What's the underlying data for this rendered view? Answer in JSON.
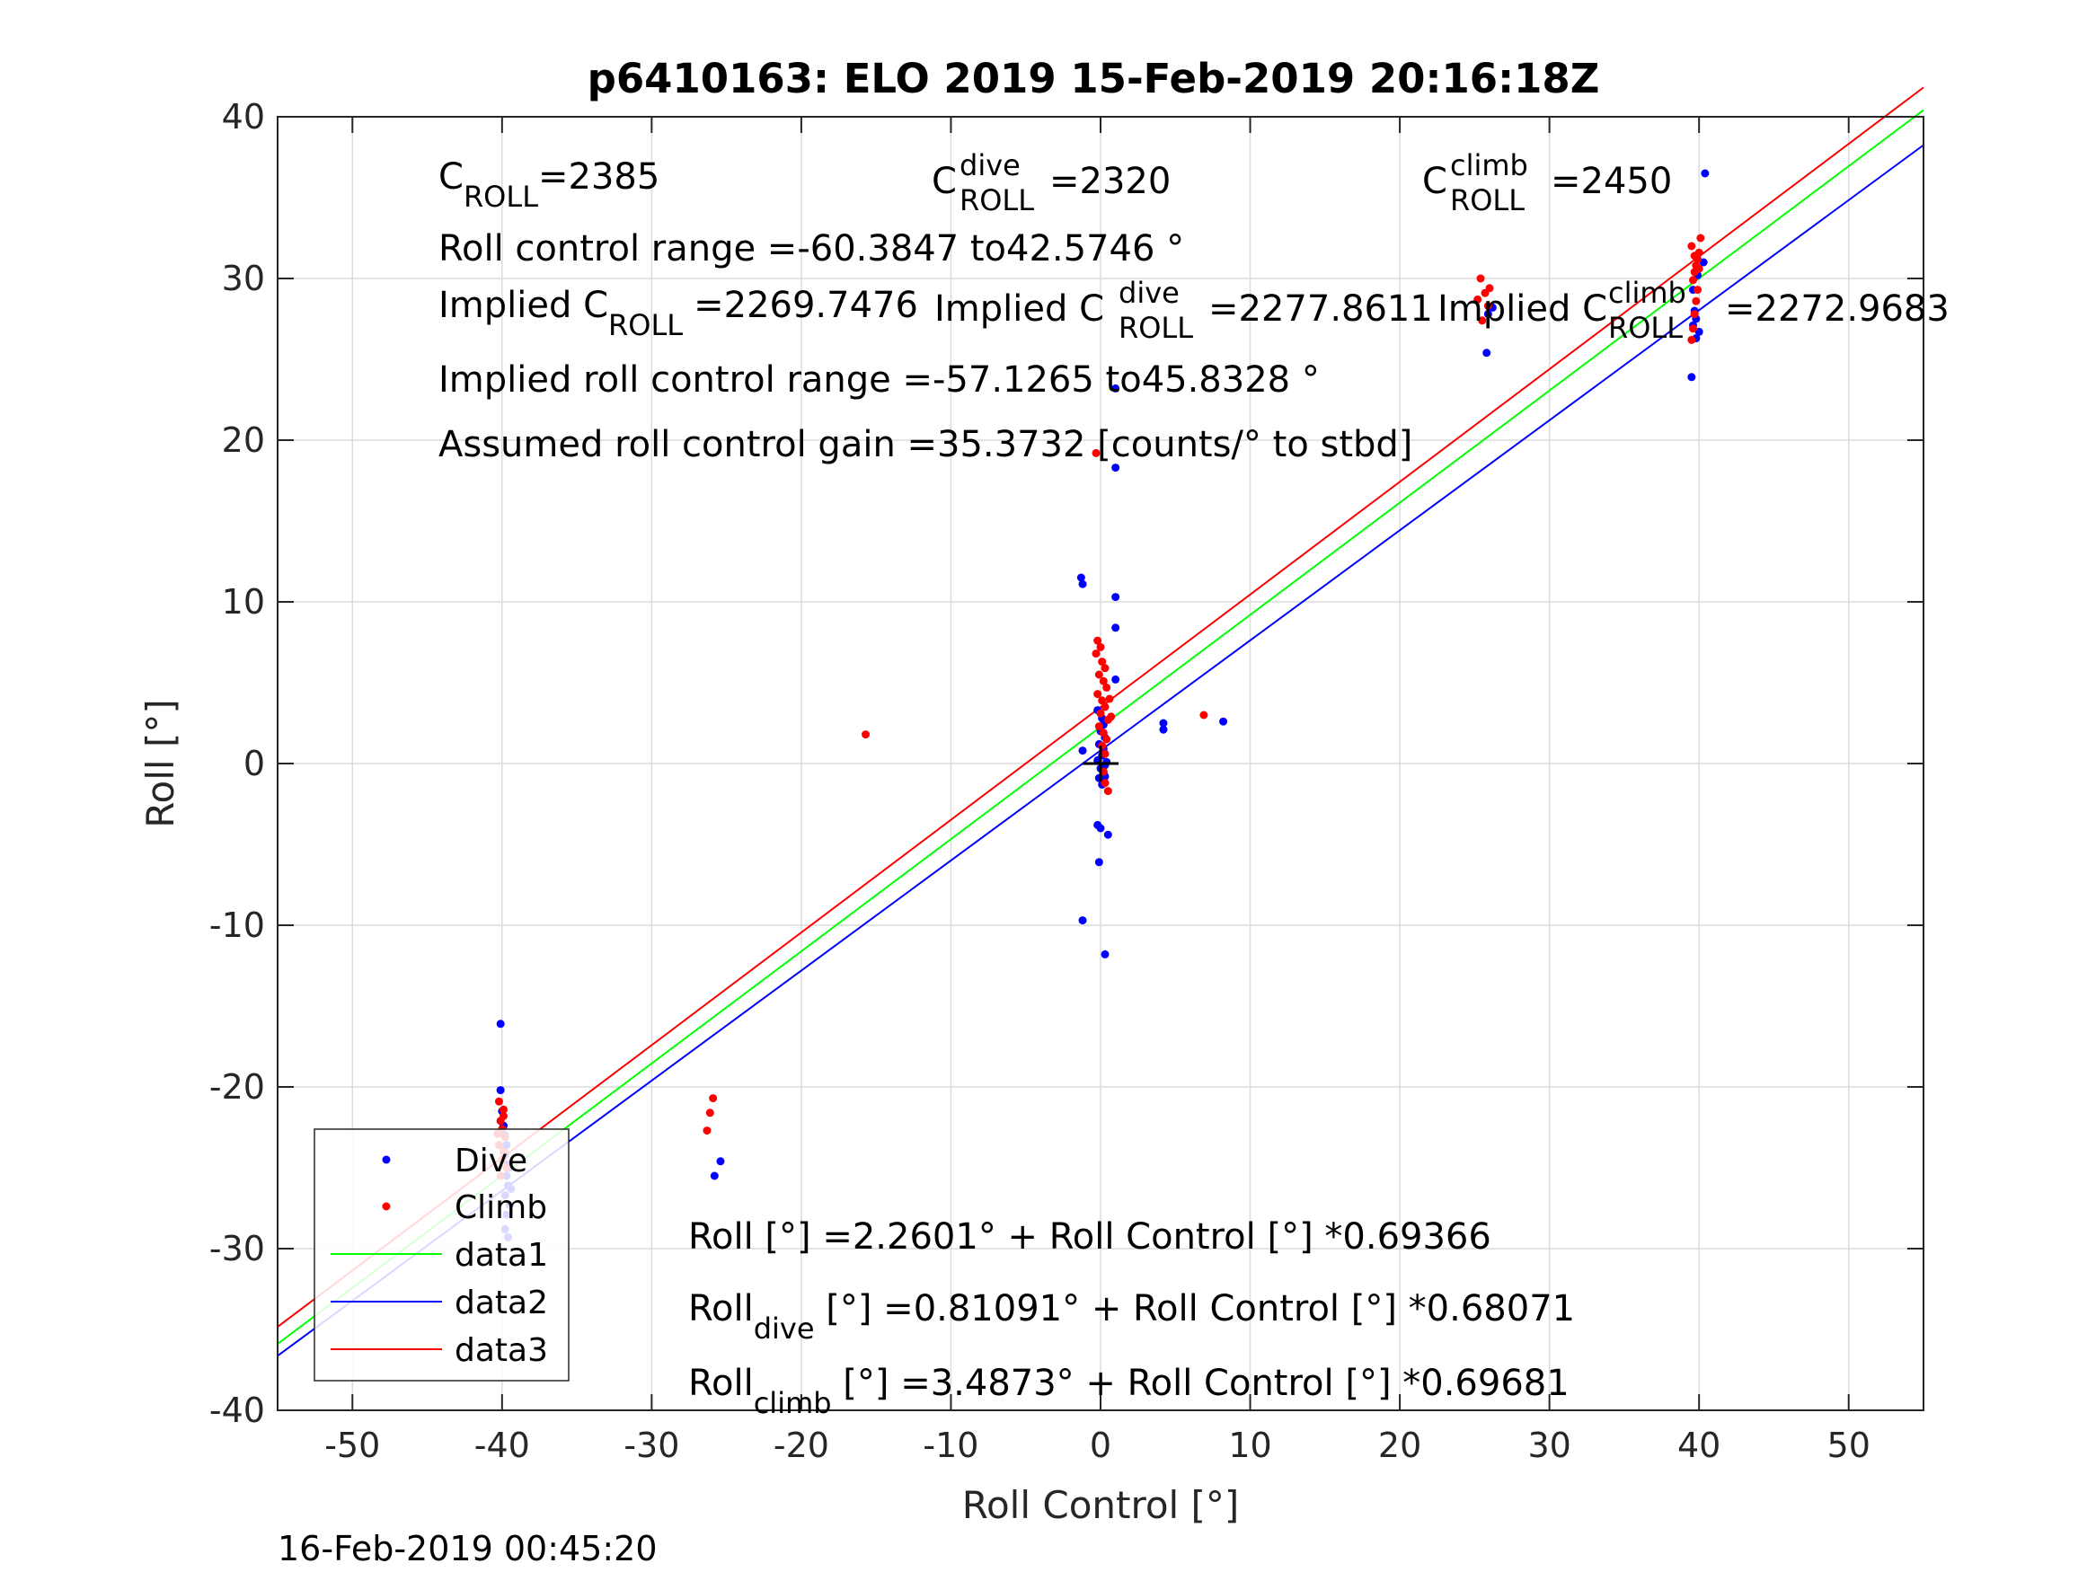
{
  "chart_data": {
    "type": "scatter",
    "title": "p6410163: ELO 2019 15-Feb-2019 20:16:18Z",
    "xlabel": "Roll Control [°]",
    "ylabel": "Roll [°]",
    "xlim": [
      -55,
      55
    ],
    "ylim": [
      -40,
      40
    ],
    "xticks": [
      -50,
      -40,
      -30,
      -20,
      -10,
      0,
      10,
      20,
      30,
      40,
      50
    ],
    "yticks": [
      -40,
      -30,
      -20,
      -10,
      0,
      10,
      20,
      30,
      40
    ],
    "grid": true,
    "legend_position": "bottom-left",
    "series": [
      {
        "name": "Dive",
        "kind": "points",
        "color": "#0000ff",
        "points": [
          [
            -40.1,
            -16.1
          ],
          [
            -40.1,
            -20.2
          ],
          [
            -40.0,
            -21.5
          ],
          [
            -39.9,
            -22.4
          ],
          [
            -39.8,
            -23.0
          ],
          [
            -39.7,
            -23.6
          ],
          [
            -39.8,
            -24.2
          ],
          [
            -39.6,
            -24.8
          ],
          [
            -39.7,
            -25.5
          ],
          [
            -39.6,
            -26.1
          ],
          [
            -39.8,
            -26.7
          ],
          [
            -39.5,
            -27.3
          ],
          [
            -39.7,
            -27.9
          ],
          [
            -39.8,
            -28.8
          ],
          [
            -39.6,
            -29.3
          ],
          [
            -39.4,
            -26.3
          ],
          [
            -39.5,
            -25.0
          ],
          [
            -25.8,
            -25.5
          ],
          [
            -25.4,
            -24.6
          ],
          [
            -1.3,
            11.5
          ],
          [
            -1.2,
            11.1
          ],
          [
            -1.2,
            0.8
          ],
          [
            -1.2,
            -9.7
          ],
          [
            1.0,
            23.2
          ],
          [
            1.0,
            18.3
          ],
          [
            1.0,
            10.3
          ],
          [
            1.0,
            8.4
          ],
          [
            1.0,
            5.2
          ],
          [
            0.3,
            -11.8
          ],
          [
            -0.1,
            -6.1
          ],
          [
            -0.2,
            -3.8
          ],
          [
            0.0,
            -4.0
          ],
          [
            0.5,
            -4.4
          ],
          [
            0.1,
            -1.3
          ],
          [
            -0.1,
            -0.9
          ],
          [
            0.2,
            -0.6
          ],
          [
            0.0,
            -0.3
          ],
          [
            0.3,
            -0.1
          ],
          [
            -0.2,
            0.2
          ],
          [
            0.1,
            0.5
          ],
          [
            0.2,
            0.9
          ],
          [
            -0.1,
            1.2
          ],
          [
            0.3,
            1.6
          ],
          [
            0.0,
            2.0
          ],
          [
            0.2,
            2.4
          ],
          [
            0.1,
            2.8
          ],
          [
            -0.2,
            3.3
          ],
          [
            0.4,
            0.1
          ],
          [
            0.3,
            -0.8
          ],
          [
            4.2,
            2.5
          ],
          [
            4.2,
            2.1
          ],
          [
            8.2,
            2.6
          ],
          [
            25.8,
            25.4
          ],
          [
            25.9,
            27.8
          ],
          [
            26.2,
            28.2
          ],
          [
            40.4,
            36.5
          ],
          [
            40.3,
            31.0
          ],
          [
            39.7,
            28.0
          ],
          [
            39.8,
            27.5
          ],
          [
            39.6,
            27.1
          ],
          [
            40.0,
            26.7
          ],
          [
            39.8,
            26.3
          ],
          [
            39.5,
            23.9
          ],
          [
            39.6,
            29.3
          ],
          [
            39.9,
            30.2
          ]
        ]
      },
      {
        "name": "Climb",
        "kind": "points",
        "color": "#ff0000",
        "points": [
          [
            -40.2,
            -20.9
          ],
          [
            -39.9,
            -21.4
          ],
          [
            -40.1,
            -22.1
          ],
          [
            -40.0,
            -22.6
          ],
          [
            -39.8,
            -23.1
          ],
          [
            -40.2,
            -23.6
          ],
          [
            -39.9,
            -24.0
          ],
          [
            -40.0,
            -24.5
          ],
          [
            -39.7,
            -25.0
          ],
          [
            -40.1,
            -25.5
          ],
          [
            -39.9,
            -21.8
          ],
          [
            -40.3,
            -22.9
          ],
          [
            -25.9,
            -20.7
          ],
          [
            -26.1,
            -21.6
          ],
          [
            -26.3,
            -22.7
          ],
          [
            -15.7,
            1.8
          ],
          [
            -0.2,
            7.6
          ],
          [
            0.0,
            7.2
          ],
          [
            -0.3,
            6.8
          ],
          [
            0.1,
            6.3
          ],
          [
            0.3,
            5.9
          ],
          [
            -0.1,
            5.5
          ],
          [
            0.2,
            5.1
          ],
          [
            0.4,
            4.7
          ],
          [
            -0.2,
            4.3
          ],
          [
            0.1,
            3.9
          ],
          [
            0.3,
            3.5
          ],
          [
            0.0,
            3.1
          ],
          [
            0.5,
            2.7
          ],
          [
            -0.1,
            2.3
          ],
          [
            0.2,
            1.9
          ],
          [
            0.4,
            1.5
          ],
          [
            0.1,
            1.1
          ],
          [
            0.3,
            0.6
          ],
          [
            0.2,
            -0.5
          ],
          [
            0.3,
            -1.2
          ],
          [
            0.5,
            -1.7
          ],
          [
            0.6,
            4.0
          ],
          [
            0.7,
            2.9
          ],
          [
            -0.3,
            19.2
          ],
          [
            6.9,
            3.0
          ],
          [
            25.4,
            30.0
          ],
          [
            25.7,
            29.1
          ],
          [
            26.0,
            29.4
          ],
          [
            25.2,
            28.7
          ],
          [
            25.5,
            27.4
          ],
          [
            25.9,
            28.3
          ],
          [
            39.5,
            26.2
          ],
          [
            39.6,
            26.9
          ],
          [
            39.7,
            27.8
          ],
          [
            39.8,
            28.6
          ],
          [
            39.9,
            29.3
          ],
          [
            39.6,
            29.9
          ],
          [
            39.7,
            30.4
          ],
          [
            39.8,
            30.8
          ],
          [
            39.9,
            31.2
          ],
          [
            40.0,
            31.6
          ],
          [
            39.5,
            32.0
          ],
          [
            40.1,
            32.5
          ],
          [
            40.0,
            30.6
          ],
          [
            39.7,
            31.4
          ]
        ]
      },
      {
        "name": "data1",
        "kind": "line",
        "color": "#00ff00",
        "x": [
          -55,
          55
        ],
        "intercept": 2.2601,
        "slope": 0.69366
      },
      {
        "name": "data2",
        "kind": "line",
        "color": "#0000ff",
        "x": [
          -55,
          55
        ],
        "intercept": 0.81091,
        "slope": 0.68071
      },
      {
        "name": "data3",
        "kind": "line",
        "color": "#ff0000",
        "x": [
          -55,
          55
        ],
        "intercept": 3.4873,
        "slope": 0.69681
      }
    ],
    "marker_point": [
      0,
      0
    ],
    "annotations": {
      "c_roll": "=2385",
      "c_roll_dive": "=2320",
      "c_roll_climb": "=2450",
      "roll_control_range": "Roll control range =-60.3847 to42.5746 °",
      "implied_c_roll": "=2269.7476",
      "implied_c_roll_dive": "=2277.8611",
      "implied_c_roll_climb": "=2272.9683",
      "implied_range": "Implied roll control range =-57.1265 to45.8328 °",
      "assumed_gain": "Assumed roll control gain =35.3732 [counts/° to stbd]",
      "fit_all": "Roll [°] =2.2601° + Roll Control [°] *0.69366",
      "fit_dive_rest": " [°] =0.81091° + Roll Control [°] *0.68071",
      "fit_climb_rest": " [°] =3.4873° + Roll Control [°] *0.69681",
      "word_c": "C",
      "word_roll_sub": "ROLL",
      "word_dive_sup": "dive",
      "word_climb_sup": "climb",
      "word_implied": "Implied C",
      "word_roll": "Roll",
      "word_dive_sub": "dive",
      "word_climb_sub": "climb"
    },
    "timestamp": "16-Feb-2019 00:45:20"
  }
}
